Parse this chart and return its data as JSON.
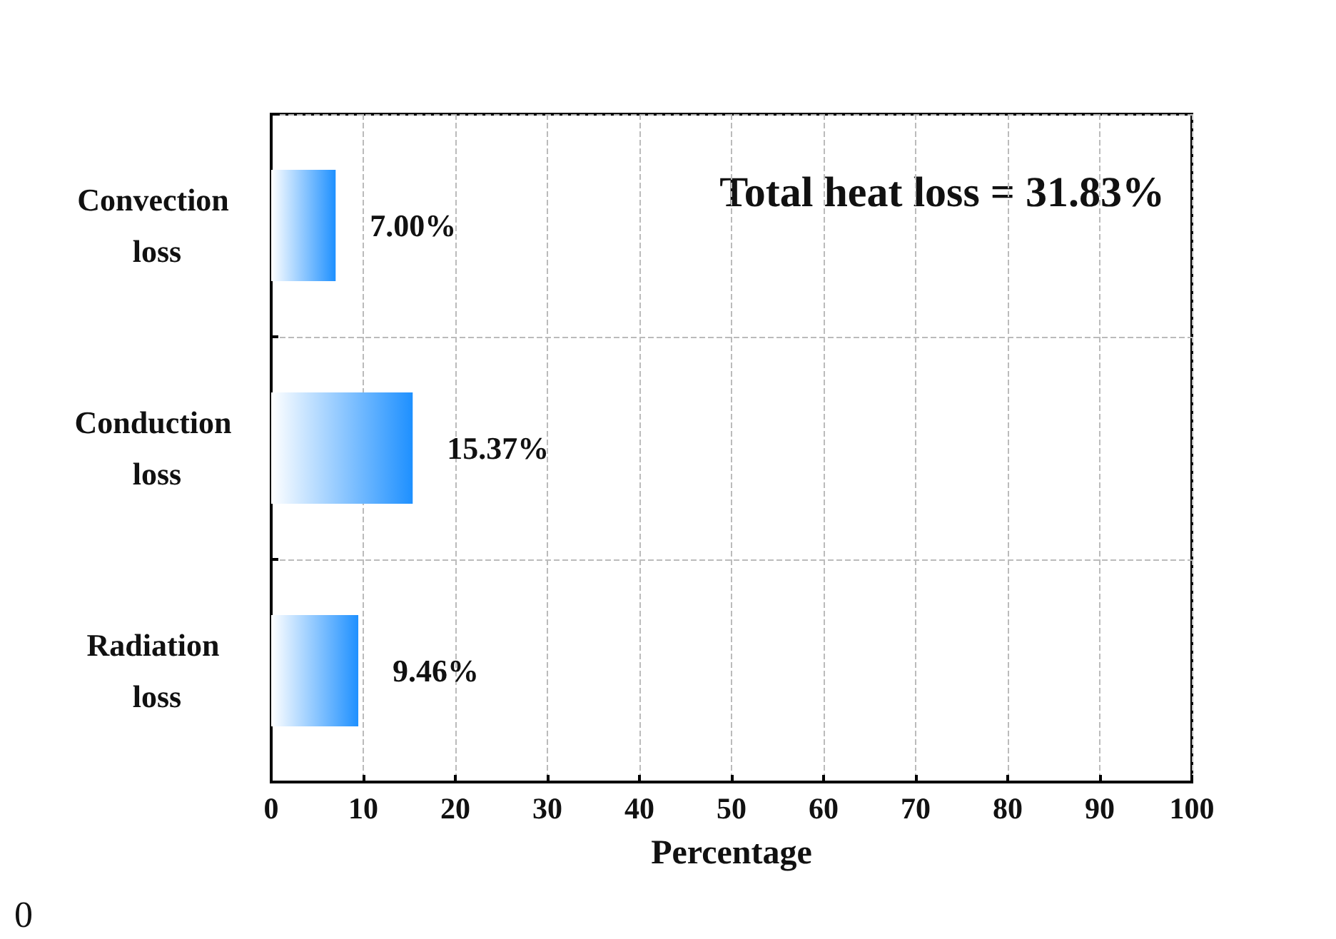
{
  "chart_data": {
    "type": "bar",
    "orientation": "horizontal",
    "xlabel": "Percentage",
    "categories": [
      "Convection loss",
      "Conduction loss",
      "Radiation loss"
    ],
    "values": [
      7.0,
      15.37,
      9.46
    ],
    "value_labels": [
      "7.00%",
      "15.37%",
      "9.46%"
    ],
    "color": "#1e90ff",
    "xlim": [
      0,
      100
    ],
    "xticks": [
      0,
      10,
      20,
      30,
      40,
      50,
      60,
      70,
      80,
      90,
      100
    ],
    "grid": true,
    "annotations": [
      "Total heat loss = 31.83%",
      "0"
    ]
  }
}
